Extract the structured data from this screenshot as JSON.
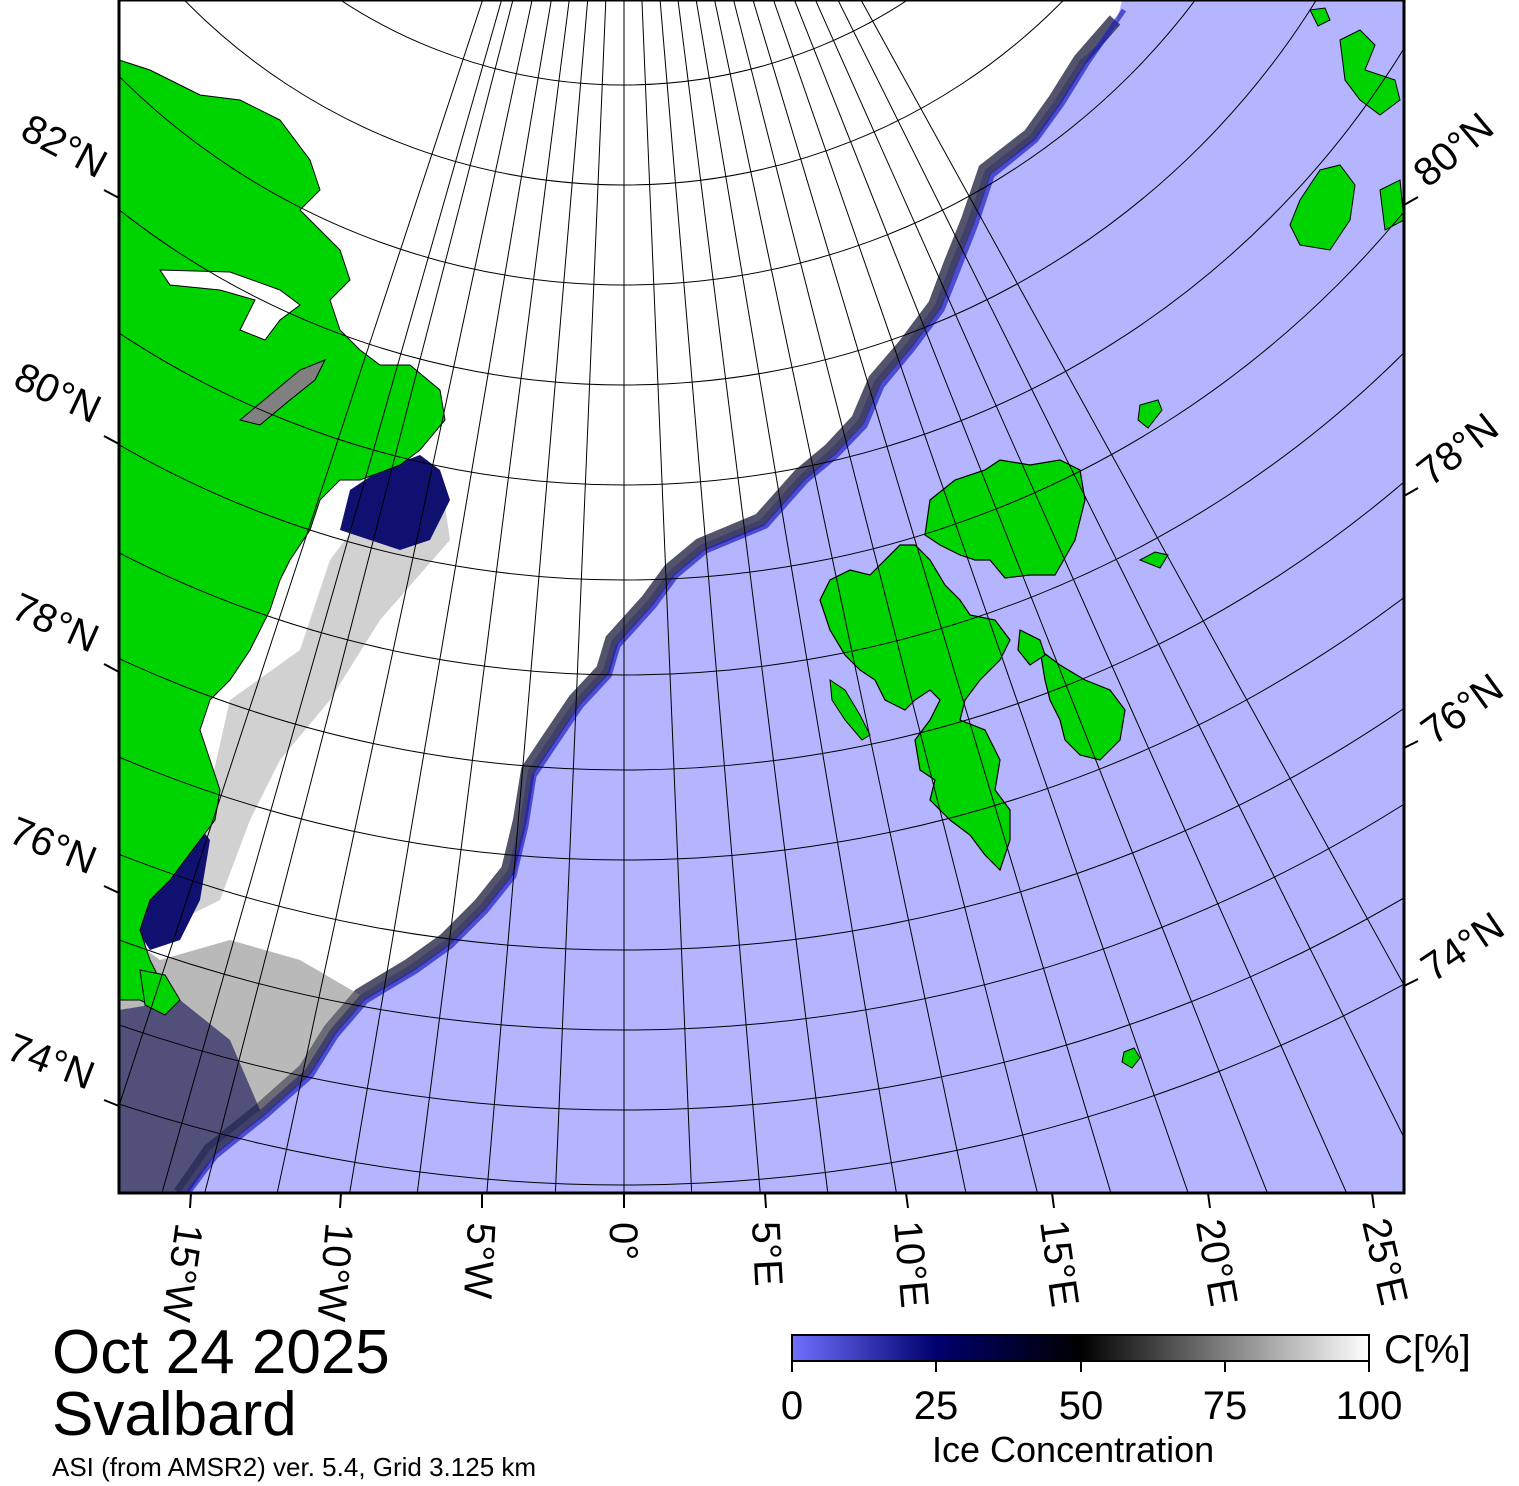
{
  "map": {
    "date": "Oct 24 2025",
    "region": "Svalbard",
    "source": "ASI (from AMSR2) ver. 5.4,  Grid 3.125 km",
    "latitude_labels_left": [
      "82°N",
      "80°N",
      "78°N",
      "76°N",
      "74°N"
    ],
    "latitude_labels_right": [
      "80°N",
      "78°N",
      "76°N",
      "74°N"
    ],
    "longitude_labels": [
      "15°W",
      "10°W",
      "5°W",
      "0°",
      "5°E",
      "10°E",
      "15°E",
      "20°E",
      "25°E"
    ],
    "colors": {
      "open_water": "#b4b4ff",
      "land": "#00d400",
      "ice_full": "#ffffff",
      "ice_mid": "#000000",
      "ice_low": "#00006e",
      "grid": "#000000"
    }
  },
  "colorbar": {
    "title": "Ice Concentration",
    "unit": "C[%]",
    "ticks": [
      "0",
      "25",
      "50",
      "75",
      "100"
    ],
    "min": 0,
    "max": 100,
    "stops": [
      {
        "value": 0,
        "color": "#7070ff"
      },
      {
        "value": 25,
        "color": "#00006e"
      },
      {
        "value": 50,
        "color": "#000000"
      },
      {
        "value": 100,
        "color": "#ffffff"
      }
    ]
  }
}
